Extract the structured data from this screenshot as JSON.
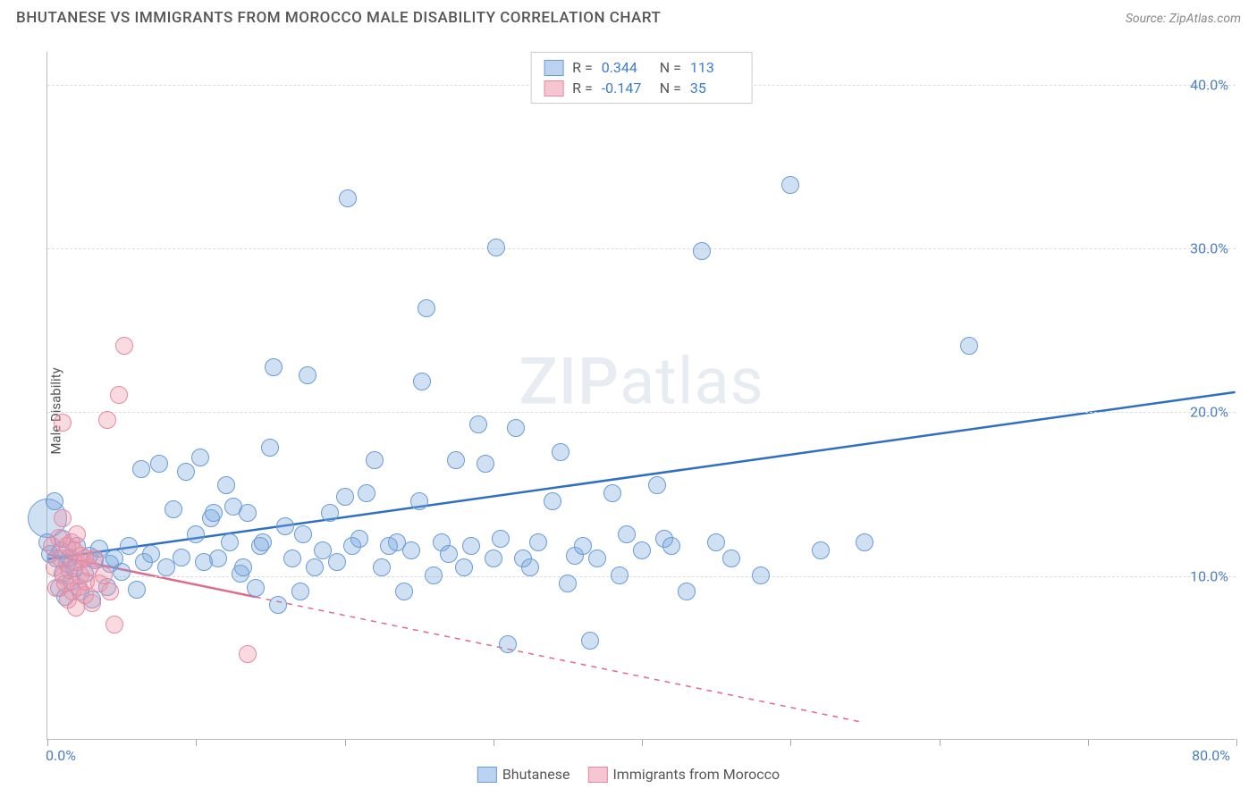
{
  "header": {
    "title": "BHUTANESE VS IMMIGRANTS FROM MOROCCO MALE DISABILITY CORRELATION CHART",
    "source": "Source: ZipAtlas.com"
  },
  "chart": {
    "type": "scatter",
    "ylabel": "Male Disability",
    "watermark_a": "ZIP",
    "watermark_b": "atlas",
    "background_color": "#ffffff",
    "grid_color": "#dddddd",
    "axis_color": "#bbbbbb",
    "xlim": [
      0,
      80
    ],
    "ylim": [
      0,
      42
    ],
    "x_ticks": [
      0,
      10,
      20,
      30,
      40,
      50,
      60,
      70,
      80
    ],
    "x_tick_labels": {
      "0": "0.0%",
      "80": "80.0%"
    },
    "y_gridlines": [
      10,
      20,
      30,
      40
    ],
    "y_tick_labels": {
      "10": "10.0%",
      "20": "20.0%",
      "30": "30.0%",
      "40": "40.0%"
    },
    "series": [
      {
        "name": "Bhutanese",
        "fill": "rgba(120,165,220,0.35)",
        "stroke": "#6a9bd8",
        "line_color": "#2f6fc1",
        "swatch_fill": "#bcd3ef",
        "swatch_border": "#6a9bd8",
        "r_value": "0.344",
        "n_value": "113",
        "trend": {
          "x1": 0,
          "y1": 11.0,
          "x2": 80,
          "y2": 21.2,
          "solid_until_x": 80
        },
        "marker_radius": 10,
        "points": [
          [
            0.2,
            11.3
          ],
          [
            0.5,
            14.5
          ],
          [
            0.6,
            11.0
          ],
          [
            0.8,
            9.2
          ],
          [
            0.9,
            11.5
          ],
          [
            1.0,
            10.1
          ],
          [
            1.0,
            12.2
          ],
          [
            1.2,
            8.7
          ],
          [
            1.3,
            10.7
          ],
          [
            1.5,
            11.1
          ],
          [
            1.6,
            9.6
          ],
          [
            1.8,
            10.4
          ],
          [
            2.0,
            11.8
          ],
          [
            2.2,
            9.0
          ],
          [
            2.5,
            10.1
          ],
          [
            2.8,
            11.2
          ],
          [
            3.0,
            8.5
          ],
          [
            3.2,
            10.9
          ],
          [
            3.5,
            11.6
          ],
          [
            4.0,
            9.3
          ],
          [
            4.2,
            10.7
          ],
          [
            4.5,
            11.0
          ],
          [
            5.0,
            10.2
          ],
          [
            5.5,
            11.8
          ],
          [
            6.0,
            9.1
          ],
          [
            6.3,
            16.5
          ],
          [
            6.5,
            10.8
          ],
          [
            7.0,
            11.3
          ],
          [
            7.5,
            16.8
          ],
          [
            8.0,
            10.5
          ],
          [
            8.5,
            14.0
          ],
          [
            9.0,
            11.1
          ],
          [
            9.3,
            16.3
          ],
          [
            10.0,
            12.5
          ],
          [
            10.3,
            17.2
          ],
          [
            10.5,
            10.8
          ],
          [
            11.0,
            13.5
          ],
          [
            11.2,
            13.8
          ],
          [
            11.5,
            11.0
          ],
          [
            12.0,
            15.5
          ],
          [
            12.3,
            12.0
          ],
          [
            12.5,
            14.2
          ],
          [
            13.0,
            10.1
          ],
          [
            13.2,
            10.5
          ],
          [
            13.5,
            13.8
          ],
          [
            14.0,
            9.2
          ],
          [
            14.3,
            11.8
          ],
          [
            14.5,
            12.0
          ],
          [
            15.0,
            17.8
          ],
          [
            15.2,
            22.7
          ],
          [
            15.5,
            8.2
          ],
          [
            16.0,
            13.0
          ],
          [
            16.5,
            11.0
          ],
          [
            17.0,
            9.0
          ],
          [
            17.2,
            12.5
          ],
          [
            17.5,
            22.2
          ],
          [
            18.0,
            10.5
          ],
          [
            18.5,
            11.5
          ],
          [
            19.0,
            13.8
          ],
          [
            19.5,
            10.8
          ],
          [
            20.0,
            14.8
          ],
          [
            20.2,
            33.0
          ],
          [
            20.5,
            11.8
          ],
          [
            21.0,
            12.2
          ],
          [
            21.5,
            15.0
          ],
          [
            22.0,
            17.0
          ],
          [
            22.5,
            10.5
          ],
          [
            23.0,
            11.8
          ],
          [
            23.5,
            12.0
          ],
          [
            24.0,
            9.0
          ],
          [
            24.5,
            11.5
          ],
          [
            25.0,
            14.5
          ],
          [
            25.2,
            21.8
          ],
          [
            25.5,
            26.3
          ],
          [
            26.0,
            10.0
          ],
          [
            26.5,
            12.0
          ],
          [
            27.0,
            11.3
          ],
          [
            27.5,
            17.0
          ],
          [
            28.0,
            10.5
          ],
          [
            28.5,
            11.8
          ],
          [
            29.0,
            19.2
          ],
          [
            29.5,
            16.8
          ],
          [
            30.0,
            11.0
          ],
          [
            30.2,
            30.0
          ],
          [
            30.5,
            12.2
          ],
          [
            31.0,
            5.8
          ],
          [
            31.5,
            19.0
          ],
          [
            32.0,
            11.0
          ],
          [
            32.5,
            10.5
          ],
          [
            33.0,
            12.0
          ],
          [
            34.0,
            14.5
          ],
          [
            34.5,
            17.5
          ],
          [
            35.0,
            9.5
          ],
          [
            35.5,
            11.2
          ],
          [
            36.0,
            11.8
          ],
          [
            36.5,
            6.0
          ],
          [
            37.0,
            11.0
          ],
          [
            38.0,
            15.0
          ],
          [
            38.5,
            10.0
          ],
          [
            39.0,
            12.5
          ],
          [
            40.0,
            11.5
          ],
          [
            41.0,
            15.5
          ],
          [
            41.5,
            12.2
          ],
          [
            42.0,
            11.8
          ],
          [
            43.0,
            9.0
          ],
          [
            44.0,
            29.8
          ],
          [
            45.0,
            12.0
          ],
          [
            46.0,
            11.0
          ],
          [
            48.0,
            10.0
          ],
          [
            50.0,
            33.8
          ],
          [
            52.0,
            11.5
          ],
          [
            55.0,
            12.0
          ],
          [
            62.0,
            24.0
          ],
          [
            0.0,
            12.0
          ]
        ],
        "big_points": [
          [
            0.0,
            13.5,
            22
          ]
        ]
      },
      {
        "name": "Immigrants from Morocco",
        "fill": "rgba(240,150,170,0.35)",
        "stroke": "#e48aa0",
        "line_color": "#e06a8a",
        "swatch_fill": "#f6c5d2",
        "swatch_border": "#e48aa0",
        "r_value": "-0.147",
        "n_value": "35",
        "trend": {
          "x1": 0,
          "y1": 11.3,
          "x2": 55,
          "y2": 1.0,
          "solid_until_x": 14
        },
        "marker_radius": 10,
        "points": [
          [
            0.3,
            11.8
          ],
          [
            0.5,
            10.5
          ],
          [
            0.6,
            9.2
          ],
          [
            0.8,
            12.3
          ],
          [
            0.9,
            11.0
          ],
          [
            1.0,
            13.5
          ],
          [
            1.1,
            10.0
          ],
          [
            1.2,
            9.5
          ],
          [
            1.3,
            11.8
          ],
          [
            1.4,
            8.5
          ],
          [
            1.5,
            10.3
          ],
          [
            1.6,
            12.0
          ],
          [
            1.7,
            9.0
          ],
          [
            1.8,
            11.5
          ],
          [
            1.9,
            8.0
          ],
          [
            2.0,
            10.8
          ],
          [
            2.1,
            9.3
          ],
          [
            2.2,
            10.0
          ],
          [
            2.3,
            11.2
          ],
          [
            2.5,
            8.8
          ],
          [
            2.6,
            9.6
          ],
          [
            2.8,
            10.5
          ],
          [
            3.0,
            8.3
          ],
          [
            3.2,
            11.0
          ],
          [
            3.5,
            9.5
          ],
          [
            3.8,
            10.0
          ],
          [
            4.0,
            19.5
          ],
          [
            4.2,
            9.0
          ],
          [
            4.5,
            7.0
          ],
          [
            4.8,
            21.0
          ],
          [
            5.2,
            24.0
          ],
          [
            1.0,
            19.3
          ],
          [
            2.0,
            12.5
          ],
          [
            2.5,
            11.0
          ],
          [
            13.5,
            5.2
          ]
        ]
      }
    ],
    "legend_top_labels": {
      "r": "R =",
      "n": "N ="
    },
    "legend_bottom": [
      {
        "label": "Bhutanese",
        "fill": "#bcd3ef",
        "border": "#6a9bd8"
      },
      {
        "label": "Immigrants from Morocco",
        "fill": "#f6c5d2",
        "border": "#e48aa0"
      }
    ]
  }
}
